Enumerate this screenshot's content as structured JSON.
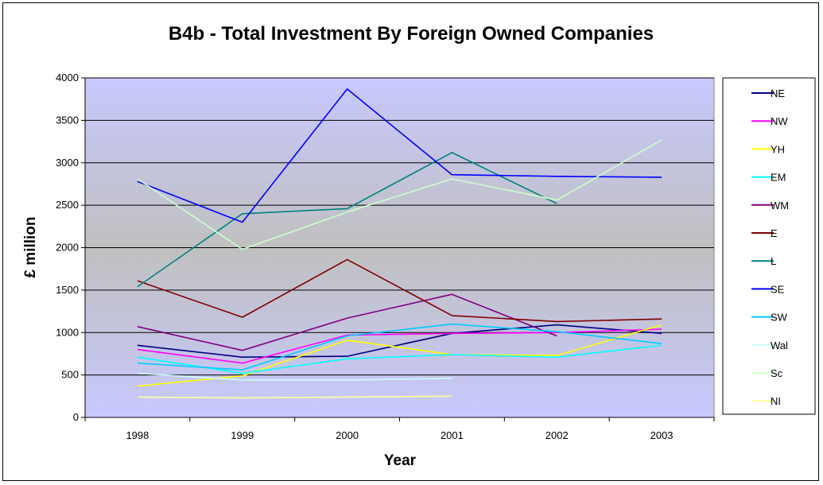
{
  "chart_data": {
    "type": "line",
    "title": "B4b - Total Investment By Foreign Owned Companies",
    "xlabel": "Year",
    "ylabel": "£ million",
    "categories": [
      "1998",
      "1999",
      "2000",
      "2001",
      "2002",
      "2003"
    ],
    "ylim": [
      0,
      4000
    ],
    "yticks": [
      0,
      500,
      1000,
      1500,
      2000,
      2500,
      3000,
      3500,
      4000
    ],
    "grid": true,
    "legend_position": "right",
    "plot_background": [
      "#c8c8ff",
      "#c0c0c0",
      "#c8c8ff"
    ],
    "series": [
      {
        "name": "NE",
        "color": "#000080",
        "values": [
          850,
          710,
          720,
          990,
          1090,
          990
        ]
      },
      {
        "name": "NW",
        "color": "#ff00ff",
        "values": [
          800,
          640,
          970,
          990,
          1000,
          1040
        ]
      },
      {
        "name": "YH",
        "color": "#ffff00",
        "values": [
          370,
          490,
          910,
          740,
          730,
          1090
        ]
      },
      {
        "name": "EM",
        "color": "#00ffff",
        "values": [
          710,
          520,
          690,
          740,
          710,
          850
        ]
      },
      {
        "name": "WM",
        "color": "#800080",
        "values": [
          1070,
          790,
          1170,
          1450,
          960,
          null
        ]
      },
      {
        "name": "E",
        "color": "#800000",
        "values": [
          1610,
          1180,
          1860,
          1200,
          1130,
          1160
        ]
      },
      {
        "name": "L",
        "color": "#008080",
        "values": [
          1540,
          2400,
          2460,
          3120,
          2520,
          null
        ]
      },
      {
        "name": "SE",
        "color": "#0000ff",
        "values": [
          2780,
          2300,
          3870,
          2860,
          2840,
          2830
        ]
      },
      {
        "name": "SW",
        "color": "#00ccff",
        "values": [
          640,
          560,
          960,
          1100,
          1010,
          870
        ]
      },
      {
        "name": "Wal",
        "color": "#ccffff",
        "values": [
          520,
          440,
          440,
          460,
          null,
          null
        ]
      },
      {
        "name": "Sc",
        "color": "#ccffcc",
        "values": [
          2810,
          1980,
          2420,
          2810,
          2560,
          3270
        ]
      },
      {
        "name": "NI",
        "color": "#ffff99",
        "values": [
          240,
          230,
          240,
          250,
          null,
          null
        ]
      }
    ]
  }
}
